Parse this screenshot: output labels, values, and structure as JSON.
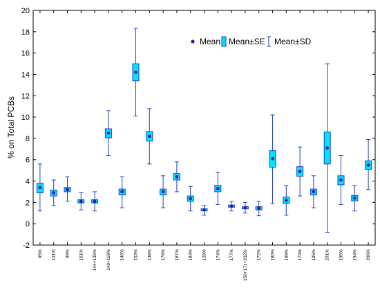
{
  "chart_data": {
    "type": "boxplot",
    "ylabel": "% on Total PCBs",
    "ylim": [
      -2,
      20
    ],
    "yticks": [
      -2,
      0,
      2,
      4,
      6,
      8,
      10,
      12,
      14,
      16,
      18,
      20
    ],
    "grid": false,
    "legend": {
      "placement": "top-right",
      "mean_label": "Mean",
      "se_label": "Mean±SE",
      "sd_label": "Mean±SD"
    },
    "colors": {
      "box_fill": "#00e5ff",
      "box_edge": "#1f3fbf",
      "mean_dot": "#1a23b0",
      "whisker": "#1f3fbf"
    },
    "categories": [
      "95%",
      "101%",
      "99%",
      "151%",
      "144+135%",
      "149+118%",
      "146%",
      "153%",
      "138%",
      "178%",
      "187%",
      "183%",
      "128%",
      "174%",
      "177%",
      "156+171+202%",
      "172%",
      "180%",
      "199%",
      "170%",
      "196%",
      "201%",
      "195%",
      "194%",
      "206%"
    ],
    "mean": [
      3.4,
      2.9,
      3.2,
      2.1,
      2.1,
      8.5,
      3.0,
      14.2,
      8.2,
      3.0,
      4.4,
      2.35,
      1.3,
      3.3,
      1.65,
      1.5,
      1.45,
      6.1,
      2.2,
      4.9,
      3.0,
      7.1,
      4.1,
      2.4,
      5.5
    ],
    "se_low": [
      2.9,
      2.6,
      3.0,
      1.95,
      1.95,
      8.05,
      2.7,
      13.4,
      7.75,
      2.7,
      4.1,
      2.1,
      1.2,
      3.0,
      1.55,
      1.4,
      1.3,
      5.3,
      1.9,
      4.45,
      2.7,
      5.6,
      3.65,
      2.15,
      5.1
    ],
    "se_high": [
      3.8,
      3.15,
      3.4,
      2.25,
      2.25,
      8.9,
      3.25,
      15.0,
      8.65,
      3.25,
      4.7,
      2.6,
      1.4,
      3.6,
      1.75,
      1.6,
      1.6,
      6.85,
      2.5,
      5.35,
      3.25,
      8.6,
      4.5,
      2.65,
      5.9
    ],
    "sd_low": [
      1.2,
      1.7,
      2.1,
      1.3,
      1.2,
      6.4,
      1.5,
      10.1,
      5.6,
      1.5,
      3.0,
      1.2,
      0.8,
      1.8,
      1.2,
      1.0,
      0.75,
      1.9,
      0.8,
      2.6,
      1.5,
      -0.8,
      1.8,
      1.2,
      3.2
    ],
    "sd_high": [
      5.6,
      4.1,
      4.4,
      2.9,
      3.0,
      10.6,
      4.4,
      18.3,
      10.8,
      4.5,
      5.8,
      3.5,
      1.7,
      4.8,
      2.1,
      2.0,
      2.1,
      10.2,
      3.6,
      7.2,
      4.5,
      15.0,
      6.4,
      3.6,
      7.9
    ]
  }
}
